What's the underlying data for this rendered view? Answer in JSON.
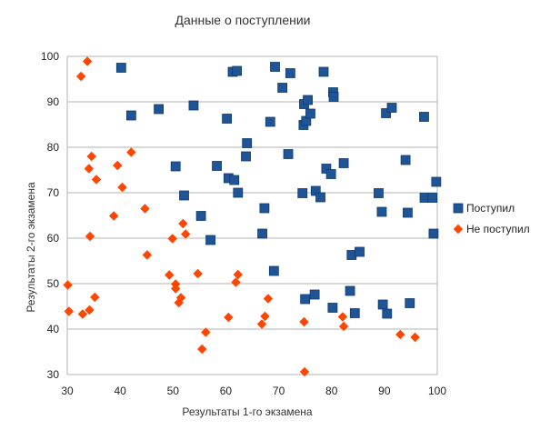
{
  "chart_data": {
    "type": "scatter",
    "title": "Данные о поступлении",
    "xlabel": "Результаты 1-го экзамена",
    "ylabel": "Результаты 2-го экзамена",
    "xlim": [
      30,
      100
    ],
    "ylim": [
      30,
      100
    ],
    "xticks": [
      30,
      40,
      50,
      60,
      70,
      80,
      90,
      100
    ],
    "yticks": [
      30,
      40,
      50,
      60,
      70,
      80,
      90,
      100
    ],
    "grid": "horizontal",
    "legend": "right",
    "series": [
      {
        "name": "Поступил",
        "color": "#1f5596",
        "marker": "square",
        "points": [
          [
            40.2,
            97.5
          ],
          [
            42.1,
            87.0
          ],
          [
            47.3,
            88.4
          ],
          [
            50.5,
            75.8
          ],
          [
            52.1,
            69.4
          ],
          [
            53.9,
            89.2
          ],
          [
            55.3,
            64.9
          ],
          [
            57.1,
            59.6
          ],
          [
            58.3,
            75.9
          ],
          [
            60.2,
            86.3
          ],
          [
            60.5,
            73.2
          ],
          [
            61.3,
            96.6
          ],
          [
            61.6,
            72.8
          ],
          [
            62.1,
            96.8
          ],
          [
            62.3,
            70.0
          ],
          [
            63.8,
            78.0
          ],
          [
            64.0,
            80.9
          ],
          [
            66.9,
            61.0
          ],
          [
            67.3,
            66.6
          ],
          [
            68.4,
            85.6
          ],
          [
            69.1,
            52.8
          ],
          [
            69.3,
            97.7
          ],
          [
            70.7,
            93.1
          ],
          [
            71.8,
            78.5
          ],
          [
            72.2,
            96.3
          ],
          [
            74.5,
            69.9
          ],
          [
            74.7,
            84.9
          ],
          [
            74.8,
            89.5
          ],
          [
            75.0,
            46.6
          ],
          [
            75.2,
            85.8
          ],
          [
            75.5,
            90.4
          ],
          [
            76.0,
            87.4
          ],
          [
            76.8,
            47.6
          ],
          [
            77.0,
            70.4
          ],
          [
            77.9,
            69.0
          ],
          [
            78.5,
            96.6
          ],
          [
            79.0,
            75.3
          ],
          [
            79.9,
            74.1
          ],
          [
            80.2,
            44.7
          ],
          [
            80.3,
            92.1
          ],
          [
            80.4,
            91.1
          ],
          [
            82.3,
            76.5
          ],
          [
            83.5,
            48.4
          ],
          [
            83.8,
            56.3
          ],
          [
            84.4,
            43.5
          ],
          [
            85.3,
            57.0
          ],
          [
            88.9,
            69.9
          ],
          [
            89.5,
            65.8
          ],
          [
            89.7,
            45.4
          ],
          [
            90.3,
            87.5
          ],
          [
            90.5,
            43.4
          ],
          [
            91.4,
            88.7
          ],
          [
            94.0,
            77.2
          ],
          [
            94.4,
            65.6
          ],
          [
            94.8,
            45.7
          ],
          [
            97.5,
            86.7
          ],
          [
            97.6,
            68.9
          ],
          [
            99.1,
            68.9
          ],
          [
            99.3,
            61.0
          ],
          [
            99.8,
            72.4
          ]
        ]
      },
      {
        "name": "Не поступил",
        "color": "#ff4500",
        "marker": "diamond",
        "points": [
          [
            30.1,
            49.7
          ],
          [
            30.3,
            43.9
          ],
          [
            32.6,
            95.6
          ],
          [
            32.9,
            43.3
          ],
          [
            33.8,
            98.9
          ],
          [
            34.1,
            75.3
          ],
          [
            34.2,
            44.2
          ],
          [
            34.3,
            60.4
          ],
          [
            34.6,
            78.0
          ],
          [
            35.2,
            47.0
          ],
          [
            35.5,
            72.9
          ],
          [
            38.8,
            64.9
          ],
          [
            39.5,
            76.0
          ],
          [
            40.4,
            71.2
          ],
          [
            42.1,
            78.9
          ],
          [
            44.7,
            66.5
          ],
          [
            45.1,
            56.3
          ],
          [
            49.3,
            51.9
          ],
          [
            49.9,
            59.9
          ],
          [
            50.5,
            49.9
          ],
          [
            50.5,
            48.9
          ],
          [
            51.1,
            45.8
          ],
          [
            51.5,
            46.9
          ],
          [
            51.9,
            63.2
          ],
          [
            52.4,
            60.9
          ],
          [
            54.7,
            52.2
          ],
          [
            55.5,
            35.6
          ],
          [
            56.2,
            39.3
          ],
          [
            60.5,
            42.6
          ],
          [
            61.9,
            50.3
          ],
          [
            62.3,
            52.0
          ],
          [
            66.8,
            41.1
          ],
          [
            67.4,
            42.8
          ],
          [
            68.0,
            46.7
          ],
          [
            74.8,
            41.6
          ],
          [
            74.9,
            30.6
          ],
          [
            82.1,
            42.7
          ],
          [
            82.3,
            40.6
          ],
          [
            93.0,
            38.8
          ],
          [
            95.8,
            38.2
          ]
        ]
      }
    ]
  }
}
